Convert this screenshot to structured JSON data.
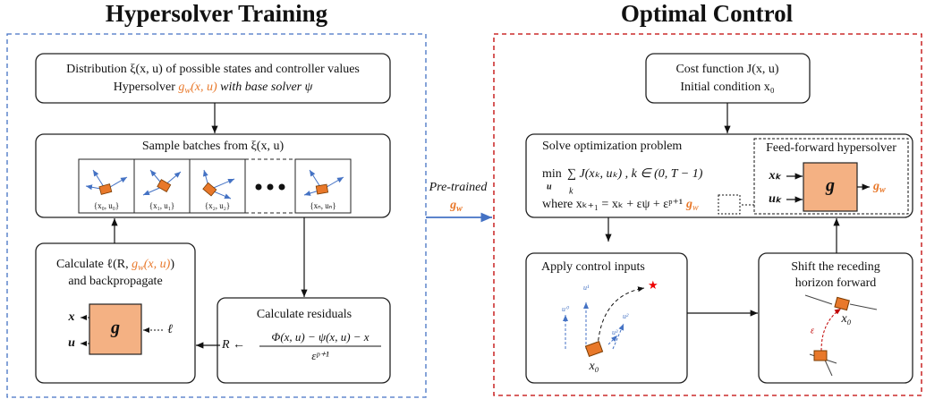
{
  "left_title": "Hypersolver Training",
  "right_title": "Optimal Control",
  "distribution": {
    "line1": "Distribution ξ(x, u) of possible states and controller values",
    "line2": [
      "Hypersolver ",
      "g",
      "w",
      "(x, u)",
      " with base solver ψ"
    ]
  },
  "sample": {
    "title": "Sample batches from ξ(x, u)",
    "batches": [
      "{x₀, u₀}",
      "{x₁, u₁}",
      "{x₂, u₂}",
      "{xₙ, uₙ}"
    ]
  },
  "loss": {
    "line1": [
      "Calculate ℓ(R, ",
      "g",
      "w",
      "(x, u)",
      ")"
    ],
    "line2": "and backpropagate",
    "inputs": [
      "x",
      "u"
    ],
    "block": "g",
    "signal": "ℓ"
  },
  "residuals": {
    "title": "Calculate residuals",
    "lhs": "R ←",
    "numerator": "Φ(x, u) − ψ(x, u) − x",
    "denominator": "εᵖ⁺¹"
  },
  "transfer": {
    "line1": "Pre-trained",
    "line2": [
      "g",
      "w"
    ]
  },
  "cost": {
    "line1": "Cost function J(x, u)",
    "line2": "Initial condition x₀"
  },
  "optimization": {
    "title": "Solve optimization problem",
    "objective_op": "min",
    "objective_var": "u",
    "objective": "∑ J(xₖ, uₖ) , k ∈ (0, T − 1)",
    "sum_index": "k",
    "update": [
      "where xₖ₊₁ = xₖ + εψ + εᵖ⁺¹",
      "g",
      "w"
    ]
  },
  "hypersolver": {
    "title": "Feed-forward hypersolver",
    "inputs": [
      "xₖ",
      "uₖ"
    ],
    "block": "g",
    "output": [
      "g",
      "w"
    ]
  },
  "apply": {
    "title": "Apply control inputs",
    "inputs": [
      "u⁰",
      "u¹",
      "u²",
      "u³"
    ],
    "state": "x₀"
  },
  "shift": {
    "title": "Shift the receding",
    "line2": "horizon forward",
    "step": "ε",
    "state": "x₀"
  }
}
